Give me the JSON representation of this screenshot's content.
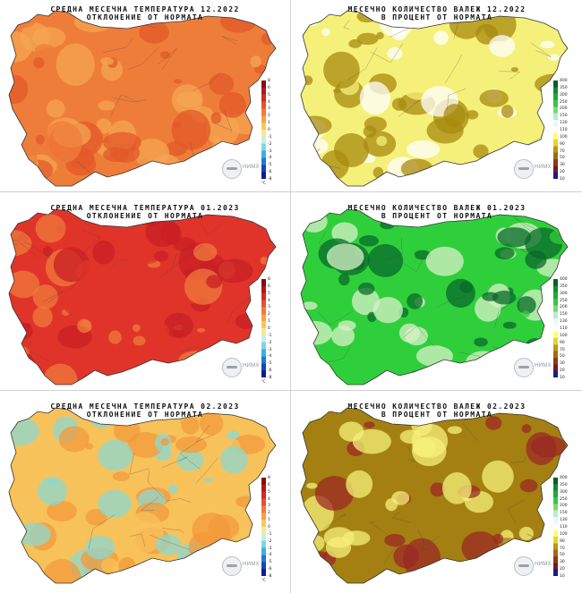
{
  "panels": [
    {
      "id": "temp-2022-12",
      "type": "temperature",
      "title_line1": "СРЕДНА  МЕСЕЧНА  ТЕМПЕРАТУРА   12.2022",
      "title_line2": "ОТКЛОНЕНИЕ  ОТ  НОРМАТА",
      "fill": "#ef7d3a",
      "fill_dark": "#e25a2a",
      "fill_light": "#f6a552"
    },
    {
      "id": "precip-2022-12",
      "type": "precipitation",
      "title_line1": "МЕСЕЧНО  КОЛИЧЕСТВО  ВАЛЕЖ   12.2022",
      "title_line2": "В  ПРОЦЕНТ  ОТ  НОРМАТА",
      "fill": "#f5f07a",
      "fill_dark": "#a88a10",
      "fill_light": "#ffffff"
    },
    {
      "id": "temp-2023-01",
      "type": "temperature",
      "title_line1": "СРЕДНА  МЕСЕЧНА  ТЕМПЕРАТУРА   01.2023",
      "title_line2": "ОТКЛОНЕНИЕ  ОТ  НОРМАТА",
      "fill": "#e0342a",
      "fill_dark": "#c81f24",
      "fill_light": "#f07a3c"
    },
    {
      "id": "precip-2023-01",
      "type": "precipitation",
      "title_line1": "МЕСЕЧНО  КОЛИЧЕСТВО  ВАЛЕЖ   01.2023",
      "title_line2": "В  ПРОЦЕНТ  ОТ  НОРМАТА",
      "fill": "#2fcf3c",
      "fill_dark": "#0a6a2a",
      "fill_light": "#d9f0c8"
    },
    {
      "id": "temp-2023-02",
      "type": "temperature",
      "title_line1": "СРЕДНА  МЕСЕЧНА  ТЕМПЕРАТУРА   02.2023",
      "title_line2": "ОТКЛОНЕНИЕ  ОТ  НОРМАТА",
      "fill": "#f8c25a",
      "fill_dark": "#f39a3c",
      "fill_light": "#8ed8d0"
    },
    {
      "id": "precip-2023-02",
      "type": "precipitation",
      "title_line1": "МЕСЕЧНО  КОЛИЧЕСТВО  ВАЛЕЖ   02.2023",
      "title_line2": "В  ПРОЦЕНТ  ОТ  НОРМАТА",
      "fill": "#a48012",
      "fill_dark": "#9b2a24",
      "fill_light": "#f5f07a"
    }
  ],
  "temperature_legend": {
    "ticks": [
      "8",
      "6",
      "5",
      "4",
      "3",
      "2",
      "1",
      "0",
      "-1",
      "-2",
      "-3",
      "-4",
      "-5",
      "-6",
      "-8"
    ],
    "unit": "°C",
    "colors": [
      "#8a0a12",
      "#b01818",
      "#d22a24",
      "#e8502e",
      "#f27a36",
      "#f8a244",
      "#fbc858",
      "#f6e69a",
      "#c8eee6",
      "#82d4e6",
      "#3ab0e0",
      "#1f7ad0",
      "#1546b8",
      "#0b2090"
    ]
  },
  "precip_legend": {
    "ticks": [
      "400",
      "350",
      "300",
      "250",
      "200",
      "150",
      "130",
      "110",
      "100",
      "90",
      "70",
      "50",
      "30",
      "20",
      "10"
    ],
    "colors": [
      "#0b5e24",
      "#178a30",
      "#22a83a",
      "#35c848",
      "#7fd86a",
      "#b8ecd0",
      "#e8f8ff",
      "#ffffff",
      "#ffff70",
      "#e4d430",
      "#b89818",
      "#a06c10",
      "#8a3a18",
      "#7a1a20",
      "#1a1a8a"
    ]
  },
  "logo_text": "НИМХ"
}
